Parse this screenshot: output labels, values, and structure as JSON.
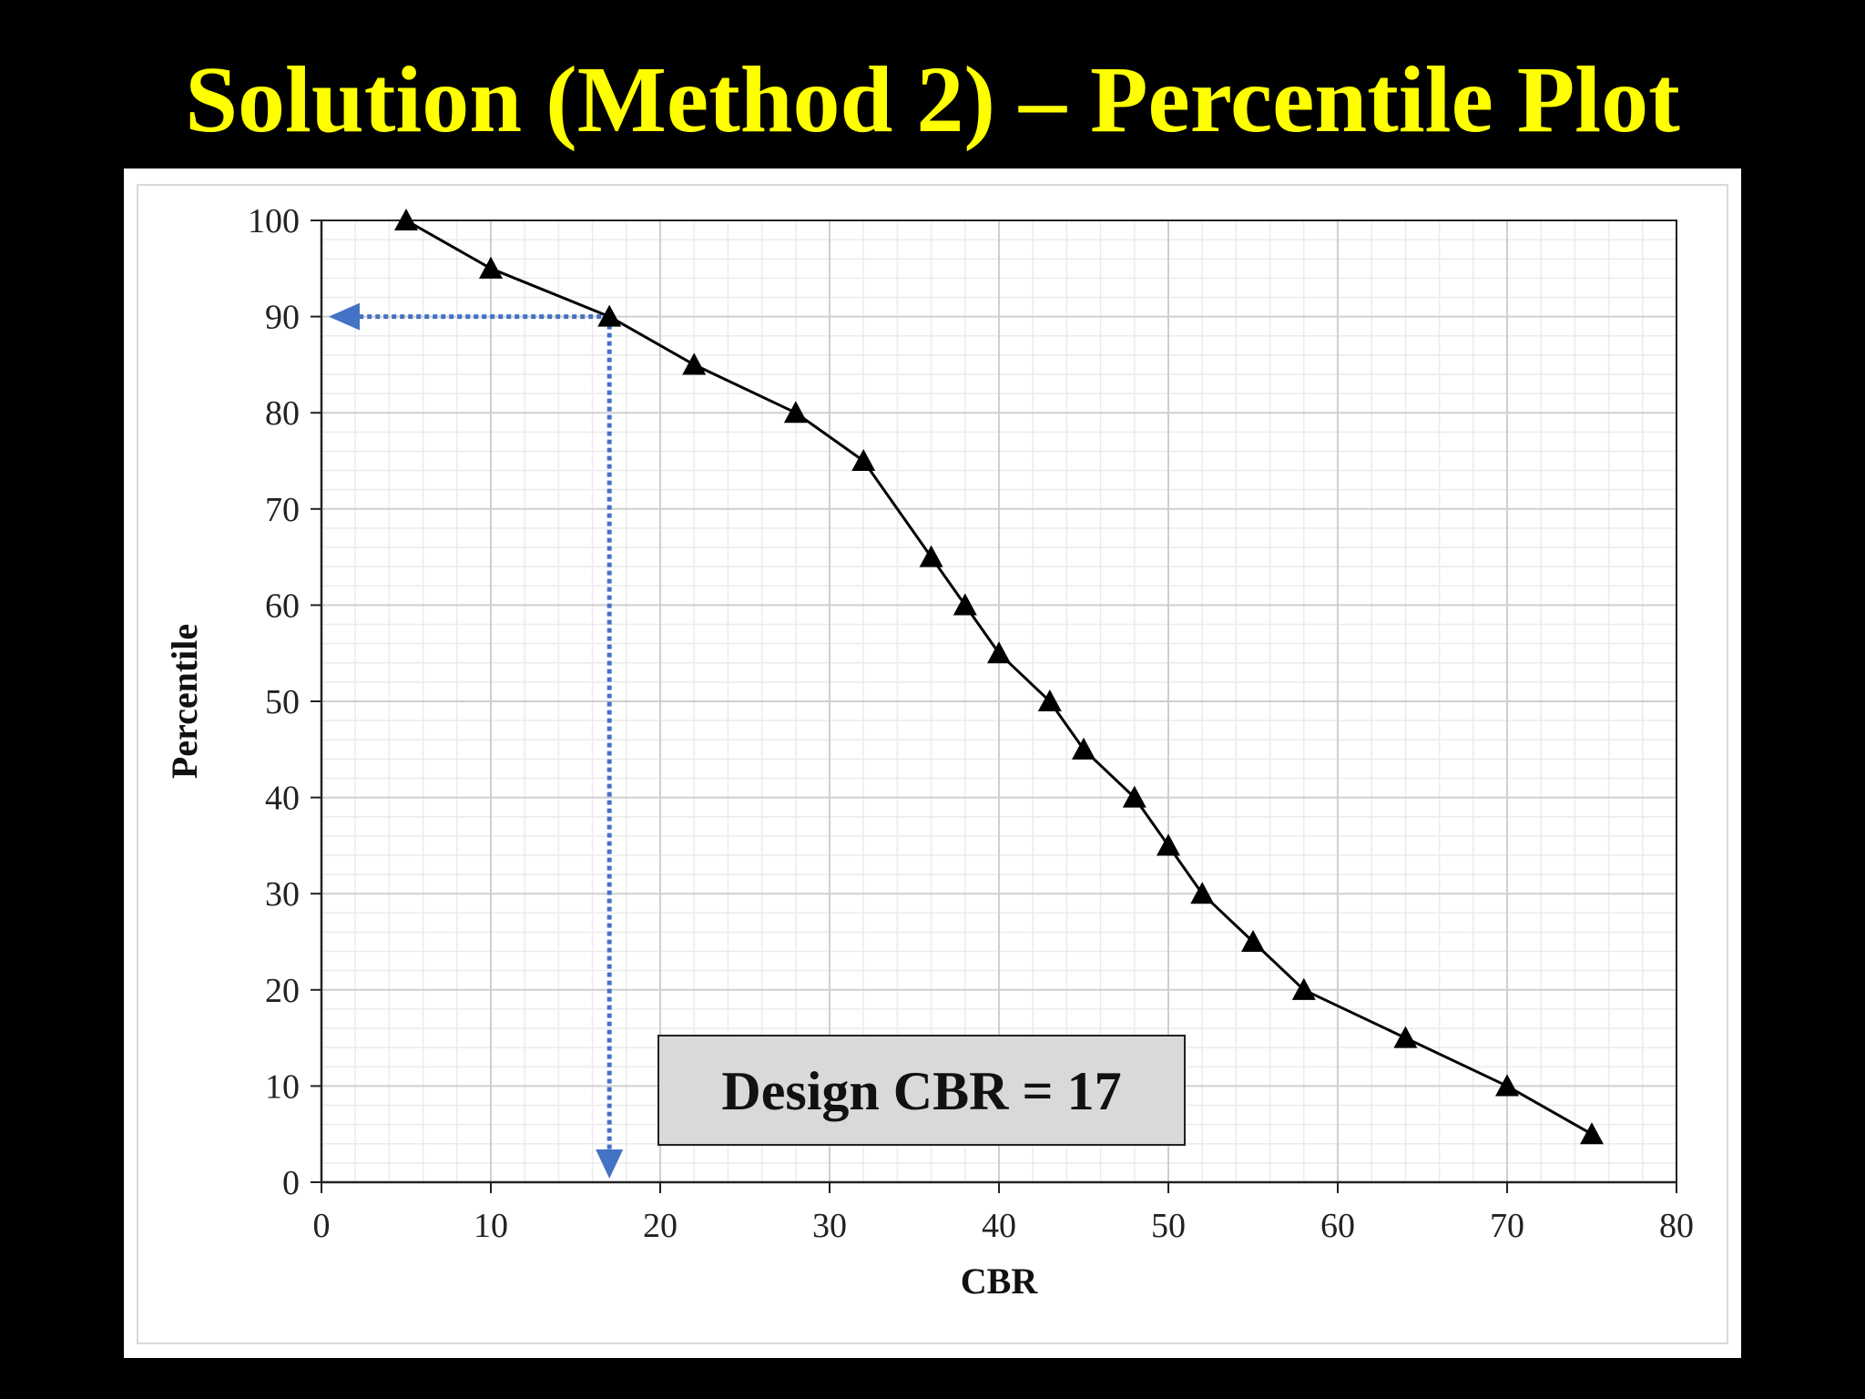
{
  "slide": {
    "title": "Solution (Method 2) – Percentile Plot"
  },
  "chart_data": {
    "type": "line",
    "title": "",
    "xlabel": "CBR",
    "ylabel": "Percentile",
    "xlim": [
      0,
      80
    ],
    "ylim": [
      0,
      100
    ],
    "x_ticks": [
      0,
      10,
      20,
      30,
      40,
      50,
      60,
      70,
      80
    ],
    "y_ticks": [
      0,
      10,
      20,
      30,
      40,
      50,
      60,
      70,
      80,
      90,
      100
    ],
    "grid": true,
    "marker": "triangle",
    "line_color": "#000000",
    "series": [
      {
        "x": [
          5,
          10,
          17,
          22,
          28,
          32,
          36,
          38,
          40,
          43,
          45,
          48,
          50,
          52,
          55,
          58,
          64,
          70,
          75
        ],
        "y": [
          100,
          95,
          90,
          85,
          80,
          75,
          65,
          60,
          55,
          50,
          45,
          40,
          35,
          30,
          25,
          20,
          15,
          10,
          5
        ]
      }
    ],
    "guide_lines": {
      "color": "#4472C4",
      "style": "dotted",
      "x": 17,
      "y": 90
    },
    "annotation": {
      "text": "Design CBR = 17",
      "background": "#D9D9D9"
    }
  }
}
